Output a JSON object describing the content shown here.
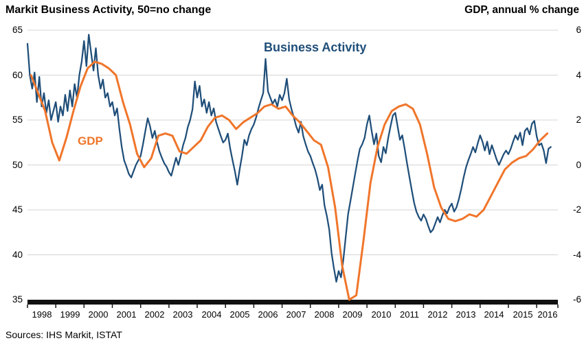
{
  "titles": {
    "left": "Markit Business Activity, 50=no change",
    "right": "GDP, annual % change"
  },
  "annotations": {
    "business_activity": "Business Activity",
    "gdp": "GDP"
  },
  "source": "Sources: IHS Markit, ISTAT",
  "colors": {
    "business_activity": "#1F4E79",
    "gdp": "#F0752A",
    "grid": "#D4D4D4",
    "axis_bar": "#111111",
    "text": "#000000"
  },
  "chart_data": {
    "type": "line",
    "title": "Markit Business Activity vs GDP, annual % change",
    "grid": true,
    "legend_position": "inline-annotations",
    "left_axis": {
      "label": "Markit Business Activity, 50=no change",
      "range": [
        35,
        65
      ],
      "ticks": [
        35,
        40,
        45,
        50,
        55,
        60,
        65
      ]
    },
    "right_axis": {
      "label": "GDP, annual % change",
      "range": [
        -6,
        6
      ],
      "ticks": [
        -6,
        -4,
        -2,
        0,
        2,
        4,
        6
      ]
    },
    "x_axis": {
      "range": [
        1998,
        2016.75
      ],
      "labels": [
        "1998",
        "1999",
        "2000",
        "2001",
        "2002",
        "2003",
        "2004",
        "2005",
        "2006",
        "2007",
        "2008",
        "2009",
        "2010",
        "2011",
        "2012",
        "2013",
        "2014",
        "2015",
        "2016"
      ]
    },
    "series": [
      {
        "name": "Business Activity",
        "axis": "left",
        "color": "#1F4E79",
        "width": 2.25,
        "x_start": 1998.0,
        "x_step": 0.0833333,
        "values": [
          63.5,
          60.0,
          58.5,
          60.3,
          57.0,
          59.8,
          56.5,
          58.0,
          55.8,
          57.2,
          55.0,
          56.0,
          57.0,
          54.8,
          56.5,
          55.5,
          57.8,
          56.0,
          58.3,
          56.5,
          59.0,
          57.5,
          60.0,
          61.5,
          63.8,
          61.0,
          64.5,
          62.5,
          60.5,
          63.0,
          60.0,
          58.5,
          59.5,
          57.5,
          58.0,
          56.5,
          57.0,
          55.5,
          56.3,
          54.0,
          52.0,
          50.5,
          49.8,
          49.0,
          48.6,
          49.3,
          50.0,
          50.5,
          51.0,
          52.3,
          53.8,
          55.2,
          54.3,
          53.0,
          53.8,
          52.5,
          51.5,
          50.8,
          50.2,
          49.8,
          49.2,
          48.8,
          49.8,
          50.8,
          50.0,
          51.0,
          52.2,
          53.0,
          54.2,
          55.0,
          56.2,
          59.3,
          57.5,
          58.8,
          56.5,
          57.3,
          55.8,
          57.0,
          55.5,
          56.3,
          54.8,
          54.0,
          53.2,
          52.5,
          52.8,
          53.5,
          51.8,
          50.5,
          49.3,
          47.8,
          49.5,
          51.0,
          52.8,
          52.2,
          53.3,
          54.0,
          54.5,
          55.3,
          56.3,
          57.2,
          58.0,
          61.8,
          58.2,
          57.5,
          56.8,
          57.3,
          56.5,
          57.8,
          57.2,
          58.0,
          59.6,
          57.3,
          56.2,
          55.3,
          54.3,
          53.6,
          54.8,
          53.2,
          52.3,
          51.5,
          51.0,
          50.2,
          49.5,
          48.5,
          47.2,
          47.8,
          45.5,
          44.3,
          42.8,
          40.2,
          38.5,
          37.0,
          38.2,
          37.5,
          39.5,
          42.0,
          44.5,
          46.0,
          47.5,
          49.0,
          50.5,
          51.8,
          52.3,
          53.0,
          54.5,
          55.5,
          53.8,
          52.3,
          53.5,
          51.0,
          50.3,
          52.0,
          51.3,
          53.0,
          54.3,
          55.5,
          55.8,
          54.3,
          52.8,
          53.3,
          51.8,
          50.2,
          48.7,
          47.2,
          45.8,
          44.8,
          44.2,
          43.8,
          44.5,
          44.0,
          43.2,
          42.5,
          42.8,
          43.5,
          44.2,
          43.6,
          44.4,
          45.0,
          44.6,
          45.3,
          45.7,
          44.8,
          45.3,
          46.2,
          47.3,
          48.6,
          49.7,
          50.5,
          51.2,
          52.0,
          51.4,
          52.4,
          53.3,
          52.6,
          51.6,
          52.6,
          51.2,
          52.2,
          51.4,
          50.6,
          50.0,
          50.6,
          51.2,
          51.6,
          51.2,
          51.8,
          52.6,
          53.3,
          52.8,
          53.6,
          52.2,
          53.8,
          54.1,
          53.4,
          54.6,
          54.9,
          53.2,
          52.2,
          52.4,
          51.6,
          50.2,
          51.8,
          52.0
        ]
      },
      {
        "name": "GDP",
        "axis": "right",
        "color": "#F0752A",
        "width": 3,
        "x_start": 1998.125,
        "x_step": 0.25,
        "values": [
          4.0,
          3.2,
          2.4,
          1.0,
          0.2,
          1.2,
          2.4,
          3.5,
          4.3,
          4.6,
          4.5,
          4.3,
          4.0,
          2.8,
          1.8,
          0.5,
          -0.1,
          0.3,
          1.3,
          1.4,
          1.3,
          0.6,
          0.5,
          0.8,
          1.1,
          1.7,
          2.1,
          2.2,
          2.0,
          1.6,
          1.9,
          2.1,
          2.3,
          2.6,
          2.7,
          2.5,
          2.6,
          2.2,
          1.9,
          1.5,
          1.1,
          0.9,
          -0.1,
          -1.9,
          -4.5,
          -6.0,
          -5.8,
          -3.4,
          -0.8,
          0.8,
          1.8,
          2.4,
          2.6,
          2.7,
          2.5,
          1.8,
          0.5,
          -1.0,
          -1.9,
          -2.4,
          -2.5,
          -2.4,
          -2.2,
          -2.3,
          -2.0,
          -1.4,
          -0.8,
          -0.2,
          0.1,
          0.3,
          0.4,
          0.7,
          1.1,
          1.4
        ]
      }
    ]
  }
}
